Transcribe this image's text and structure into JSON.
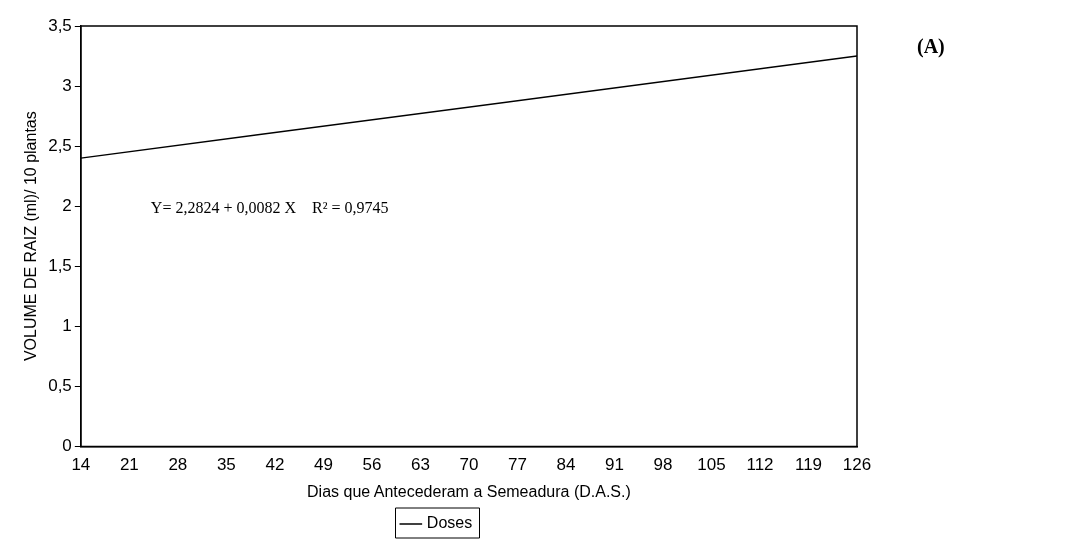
{
  "chart_data": {
    "type": "line",
    "xlabel": "Dias que Antecederam a Semeadura (D.A.S.)",
    "ylabel": "VOLUME DE RAIZ (ml)/ 10 plantas",
    "xlim": [
      14,
      126
    ],
    "xticks": [
      14,
      21,
      28,
      35,
      42,
      49,
      56,
      63,
      70,
      77,
      84,
      91,
      98,
      105,
      112,
      119,
      126
    ],
    "ylim": [
      0,
      3.5
    ],
    "yticks": [
      0,
      {
        "value": 0.5,
        "label": "0,5"
      },
      1,
      {
        "value": 1.5,
        "label": "1,5"
      },
      2,
      {
        "value": 2.5,
        "label": "2,5"
      },
      3,
      {
        "value": 3.5,
        "label": "3,5"
      }
    ],
    "series": [
      {
        "name": "Doses",
        "color": "#000000",
        "x": [
          14,
          126
        ],
        "values": [
          2.4,
          3.25
        ]
      }
    ],
    "annotations": [
      "Y= 2,2824 + 0,0082 X    R² = 0,9745",
      "(A)"
    ],
    "grid": false,
    "legend": "bottom",
    "marker": "none",
    "line_style": "solid"
  }
}
